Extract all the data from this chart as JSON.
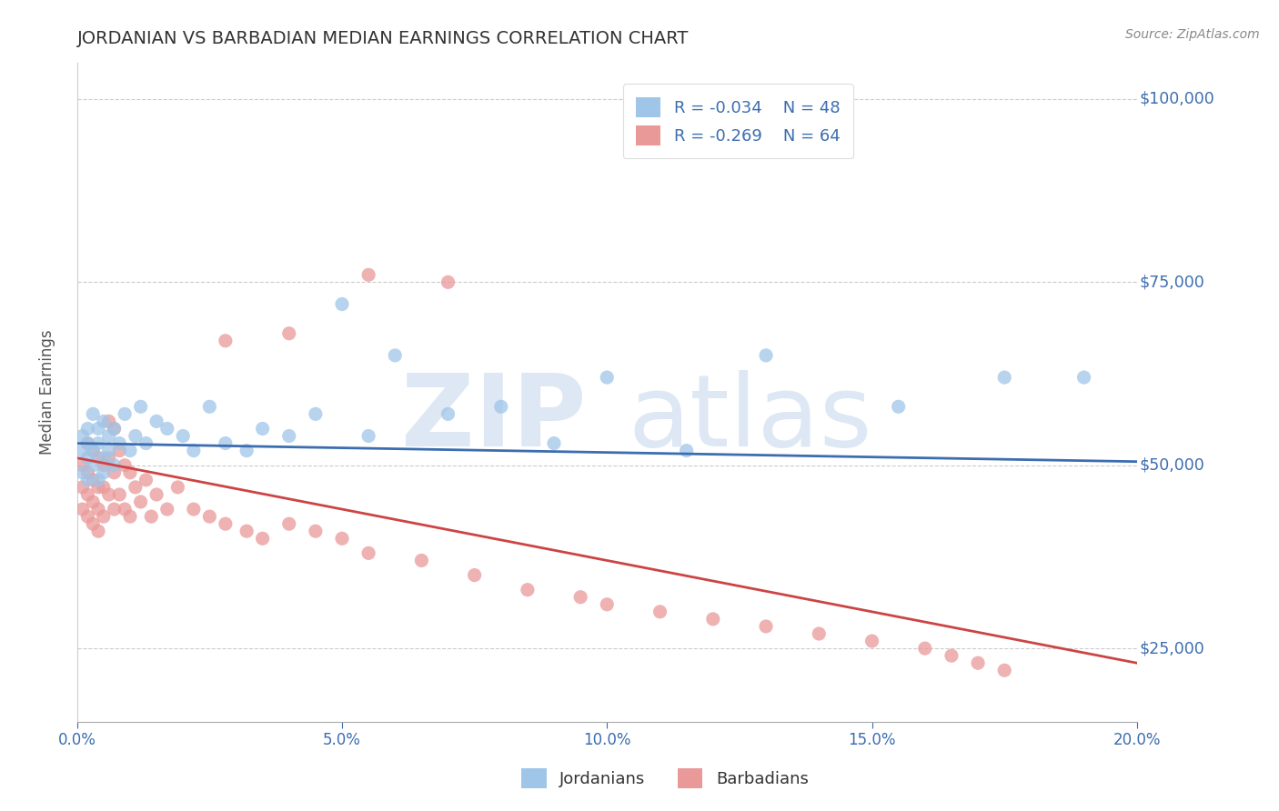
{
  "title": "JORDANIAN VS BARBADIAN MEDIAN EARNINGS CORRELATION CHART",
  "source": "Source: ZipAtlas.com",
  "ylabel": "Median Earnings",
  "xlim": [
    0.0,
    0.2
  ],
  "ylim": [
    15000,
    105000
  ],
  "yticks": [
    25000,
    50000,
    75000,
    100000
  ],
  "ytick_labels": [
    "$25,000",
    "$50,000",
    "$75,000",
    "$100,000"
  ],
  "xticks": [
    0.0,
    0.05,
    0.1,
    0.15,
    0.2
  ],
  "xtick_labels": [
    "0.0%",
    "5.0%",
    "10.0%",
    "15.0%",
    "20.0%"
  ],
  "blue_color": "#9fc5e8",
  "pink_color": "#ea9999",
  "blue_line_color": "#3c6db0",
  "pink_line_color": "#cc4444",
  "label_color": "#3c6db0",
  "grid_color": "#cccccc",
  "legend_R1": "R = -0.034",
  "legend_N1": "N = 48",
  "legend_R2": "R = -0.269",
  "legend_N2": "N = 64",
  "legend_label1": "Jordanians",
  "legend_label2": "Barbadians",
  "blue_x": [
    0.001,
    0.001,
    0.001,
    0.002,
    0.002,
    0.002,
    0.002,
    0.003,
    0.003,
    0.003,
    0.004,
    0.004,
    0.004,
    0.005,
    0.005,
    0.005,
    0.006,
    0.006,
    0.007,
    0.007,
    0.008,
    0.009,
    0.01,
    0.011,
    0.012,
    0.013,
    0.015,
    0.017,
    0.02,
    0.022,
    0.025,
    0.028,
    0.032,
    0.035,
    0.04,
    0.045,
    0.05,
    0.055,
    0.06,
    0.07,
    0.08,
    0.09,
    0.1,
    0.115,
    0.13,
    0.155,
    0.175,
    0.19
  ],
  "blue_y": [
    52000,
    49000,
    54000,
    53000,
    51000,
    55000,
    48000,
    57000,
    52000,
    50000,
    55000,
    48000,
    53000,
    51000,
    56000,
    49000,
    54000,
    52000,
    55000,
    50000,
    53000,
    57000,
    52000,
    54000,
    58000,
    53000,
    56000,
    55000,
    54000,
    52000,
    58000,
    53000,
    52000,
    55000,
    54000,
    57000,
    72000,
    54000,
    65000,
    57000,
    58000,
    53000,
    62000,
    52000,
    65000,
    58000,
    62000,
    62000
  ],
  "pink_x": [
    0.001,
    0.001,
    0.001,
    0.002,
    0.002,
    0.002,
    0.002,
    0.003,
    0.003,
    0.003,
    0.003,
    0.004,
    0.004,
    0.004,
    0.004,
    0.005,
    0.005,
    0.005,
    0.006,
    0.006,
    0.006,
    0.007,
    0.007,
    0.007,
    0.008,
    0.008,
    0.009,
    0.009,
    0.01,
    0.01,
    0.011,
    0.012,
    0.013,
    0.014,
    0.015,
    0.017,
    0.019,
    0.022,
    0.025,
    0.028,
    0.032,
    0.035,
    0.04,
    0.045,
    0.05,
    0.055,
    0.065,
    0.075,
    0.085,
    0.095,
    0.1,
    0.11,
    0.12,
    0.13,
    0.14,
    0.15,
    0.16,
    0.165,
    0.17,
    0.175,
    0.028,
    0.04,
    0.055,
    0.07
  ],
  "pink_y": [
    50000,
    47000,
    44000,
    53000,
    49000,
    46000,
    43000,
    52000,
    48000,
    45000,
    42000,
    51000,
    47000,
    44000,
    41000,
    50000,
    47000,
    43000,
    56000,
    51000,
    46000,
    55000,
    49000,
    44000,
    52000,
    46000,
    50000,
    44000,
    49000,
    43000,
    47000,
    45000,
    48000,
    43000,
    46000,
    44000,
    47000,
    44000,
    43000,
    42000,
    41000,
    40000,
    42000,
    41000,
    40000,
    38000,
    37000,
    35000,
    33000,
    32000,
    31000,
    30000,
    29000,
    28000,
    27000,
    26000,
    25000,
    24000,
    23000,
    22000,
    67000,
    68000,
    76000,
    75000
  ],
  "blue_trend_x": [
    0.0,
    0.2
  ],
  "blue_trend_y": [
    53000,
    50500
  ],
  "pink_trend_x": [
    0.0,
    0.2
  ],
  "pink_trend_y": [
    51000,
    23000
  ],
  "bg_color": "#ffffff",
  "title_fontsize": 14,
  "axis_label_color": "#3c6db0",
  "tick_label_color": "#3c6db0"
}
